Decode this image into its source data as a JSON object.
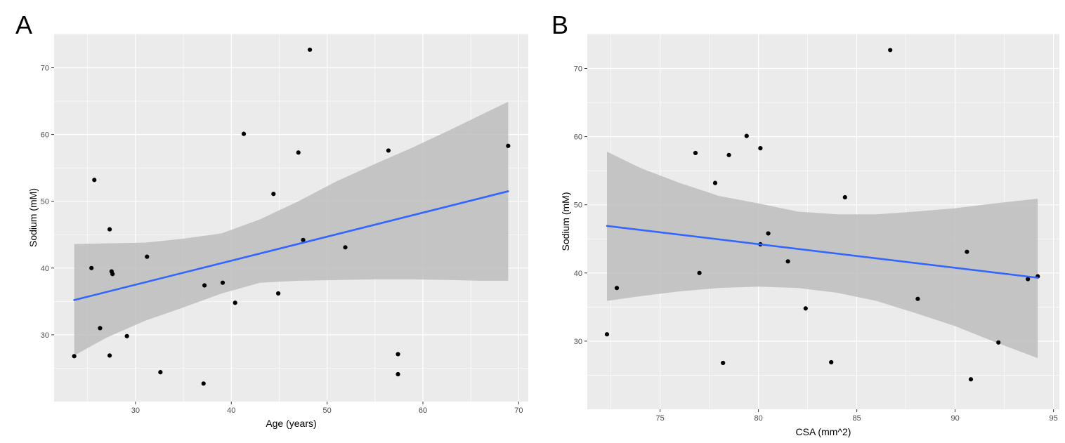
{
  "chart_data": [
    {
      "type": "scatter",
      "panel_label": "A",
      "xlabel": "Age (years)",
      "ylabel": "Sodium (mM)",
      "xlim": [
        21.5,
        71.0
      ],
      "ylim": [
        20.0,
        75.1
      ],
      "xticks": [
        30,
        40,
        50,
        60,
        70
      ],
      "yticks": [
        30,
        40,
        50,
        60,
        70
      ],
      "grid": true,
      "points": [
        {
          "x": 23.6,
          "y": 26.8
        },
        {
          "x": 25.4,
          "y": 40.0
        },
        {
          "x": 25.7,
          "y": 53.2
        },
        {
          "x": 26.3,
          "y": 31.0
        },
        {
          "x": 27.3,
          "y": 45.8
        },
        {
          "x": 27.3,
          "y": 26.9
        },
        {
          "x": 27.5,
          "y": 39.5
        },
        {
          "x": 27.6,
          "y": 39.1
        },
        {
          "x": 29.1,
          "y": 29.8
        },
        {
          "x": 31.2,
          "y": 41.7
        },
        {
          "x": 32.6,
          "y": 24.4
        },
        {
          "x": 37.1,
          "y": 22.7
        },
        {
          "x": 37.2,
          "y": 37.4
        },
        {
          "x": 39.1,
          "y": 37.8
        },
        {
          "x": 40.4,
          "y": 34.8
        },
        {
          "x": 41.3,
          "y": 60.1
        },
        {
          "x": 44.4,
          "y": 51.1
        },
        {
          "x": 44.9,
          "y": 36.2
        },
        {
          "x": 47.0,
          "y": 57.3
        },
        {
          "x": 47.5,
          "y": 44.2
        },
        {
          "x": 48.2,
          "y": 72.7
        },
        {
          "x": 51.9,
          "y": 43.1
        },
        {
          "x": 56.4,
          "y": 57.6
        },
        {
          "x": 57.4,
          "y": 27.1
        },
        {
          "x": 57.4,
          "y": 24.1
        },
        {
          "x": 68.9,
          "y": 58.3
        }
      ],
      "fit_line": [
        {
          "x": 23.6,
          "y": 35.2
        },
        {
          "x": 68.9,
          "y": 51.5
        }
      ],
      "confidence_band": {
        "x": [
          23.6,
          27.0,
          31.0,
          35.0,
          39.0,
          43.0,
          47.0,
          51.0,
          55.0,
          59.0,
          63.0,
          66.0,
          68.9
        ],
        "upper": [
          43.6,
          43.7,
          43.8,
          44.4,
          45.2,
          47.3,
          50.0,
          53.0,
          55.6,
          58.1,
          60.8,
          62.9,
          64.9
        ],
        "lower": [
          26.9,
          29.6,
          32.1,
          34.1,
          36.2,
          37.8,
          38.1,
          38.2,
          38.3,
          38.3,
          38.2,
          38.1,
          38.1
        ]
      },
      "colors": {
        "line": "#3366ff",
        "band": "#bdbdbd",
        "panel": "#ebebeb",
        "point": "#000000"
      }
    },
    {
      "type": "scatter",
      "panel_label": "B",
      "xlabel": "CSA (mm^2)",
      "ylabel": "Sodium (mM)",
      "xlim": [
        71.3,
        95.3
      ],
      "ylim": [
        20.0,
        75.1
      ],
      "xticks": [
        75,
        80,
        85,
        90,
        95
      ],
      "yticks": [
        30,
        40,
        50,
        60,
        70
      ],
      "grid": true,
      "points": [
        {
          "x": 72.3,
          "y": 31.0
        },
        {
          "x": 72.8,
          "y": 37.8
        },
        {
          "x": 76.8,
          "y": 57.6
        },
        {
          "x": 77.0,
          "y": 40.0
        },
        {
          "x": 77.8,
          "y": 53.2
        },
        {
          "x": 78.2,
          "y": 26.8
        },
        {
          "x": 78.5,
          "y": 57.3
        },
        {
          "x": 79.4,
          "y": 60.1
        },
        {
          "x": 80.1,
          "y": 58.3
        },
        {
          "x": 80.1,
          "y": 44.2
        },
        {
          "x": 80.5,
          "y": 45.8
        },
        {
          "x": 81.5,
          "y": 41.7
        },
        {
          "x": 82.4,
          "y": 34.8
        },
        {
          "x": 83.7,
          "y": 26.9
        },
        {
          "x": 84.4,
          "y": 51.1
        },
        {
          "x": 86.7,
          "y": 72.7
        },
        {
          "x": 88.1,
          "y": 36.2
        },
        {
          "x": 90.6,
          "y": 43.1
        },
        {
          "x": 90.8,
          "y": 24.4
        },
        {
          "x": 92.2,
          "y": 29.8
        },
        {
          "x": 93.7,
          "y": 39.1
        },
        {
          "x": 94.2,
          "y": 39.5
        }
      ],
      "fit_line": [
        {
          "x": 72.3,
          "y": 46.9
        },
        {
          "x": 94.2,
          "y": 39.3
        }
      ],
      "confidence_band": {
        "x": [
          72.3,
          74.0,
          76.0,
          78.0,
          80.0,
          82.0,
          84.0,
          86.0,
          88.0,
          90.0,
          92.0,
          94.2
        ],
        "upper": [
          57.8,
          55.4,
          53.2,
          51.3,
          50.2,
          49.0,
          48.6,
          48.6,
          49.0,
          49.5,
          50.2,
          50.9
        ],
        "lower": [
          35.9,
          36.6,
          37.3,
          37.8,
          38.0,
          37.8,
          37.1,
          35.9,
          34.1,
          32.2,
          29.9,
          27.5
        ]
      },
      "colors": {
        "line": "#3366ff",
        "band": "#bdbdbd",
        "panel": "#ebebeb",
        "point": "#000000"
      }
    }
  ]
}
